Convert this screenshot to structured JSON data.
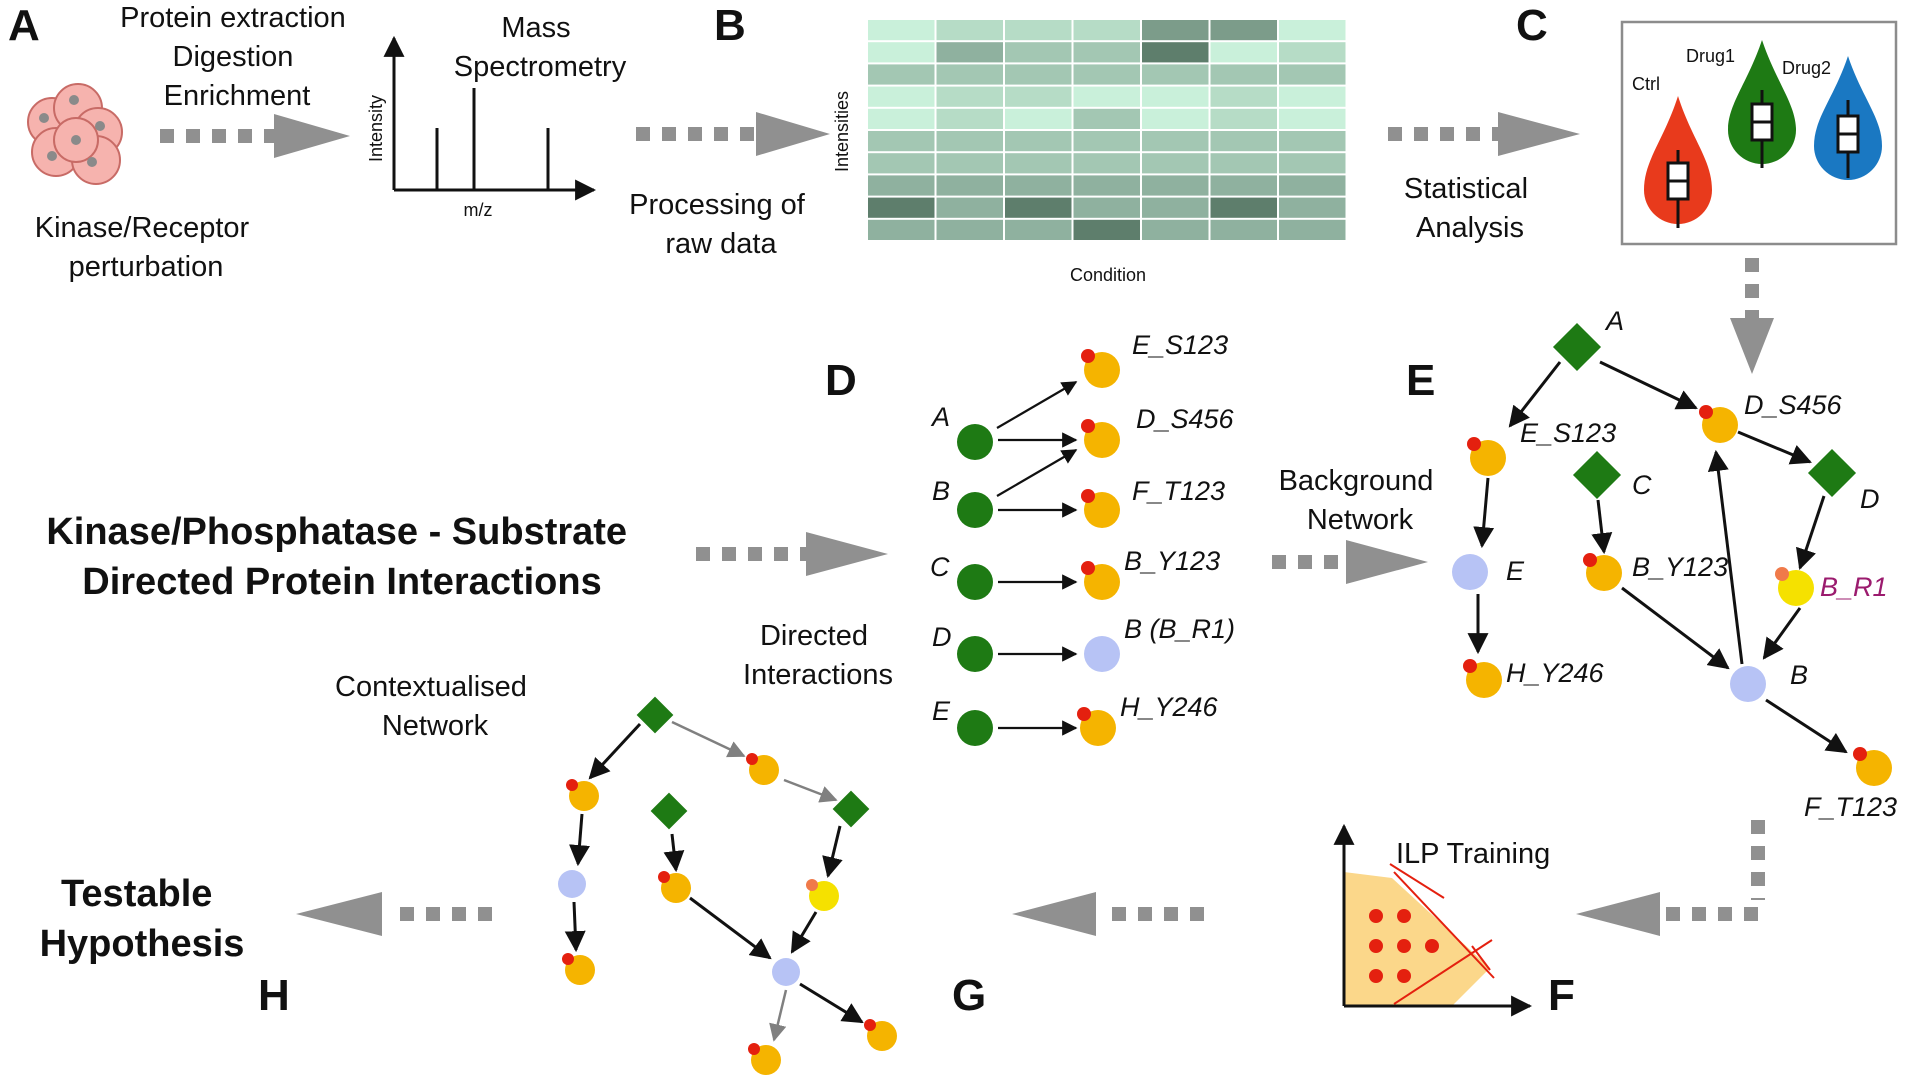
{
  "panels": {
    "A": "A",
    "B": "B",
    "C": "C",
    "D": "D",
    "E": "E",
    "F": "F",
    "G": "G",
    "H": "H"
  },
  "a": {
    "protein_lines": [
      "Protein extraction",
      "Digestion",
      "Enrichment"
    ],
    "kinase_lines": [
      "Kinase/Receptor",
      "perturbation"
    ],
    "ms_lines": [
      "Mass",
      "Spectrometry"
    ],
    "y_axis": "Intensity",
    "x_axis": "m/z"
  },
  "b": {
    "processing_lines": [
      "Processing of",
      "raw data"
    ],
    "y_axis": "Intensities",
    "x_axis": "Condition"
  },
  "c": {
    "stat_lines": [
      "Statistical",
      "Analysis"
    ],
    "groups": [
      {
        "name": "Ctrl",
        "color": "#e83a1c"
      },
      {
        "name": "Drug1",
        "color": "#1e7a14"
      },
      {
        "name": "Drug2",
        "color": "#1a78c2"
      }
    ]
  },
  "d": {
    "kinase_title_lines": [
      "Kinase/Phosphatase - Substrate",
      "Directed Protein Interactions"
    ],
    "directed_lines": [
      "Directed",
      "Interactions"
    ],
    "sources": [
      "A",
      "B",
      "C",
      "D",
      "E"
    ],
    "targets": [
      "E_S123",
      "D_S456",
      "F_T123",
      "B_Y123",
      "B (B_R1)",
      "H_Y246"
    ]
  },
  "e": {
    "background_lines": [
      "Background",
      "Network"
    ],
    "labels": [
      "A",
      "E_S123",
      "D_S456",
      "C",
      "D",
      "E",
      "B_Y123",
      "B_R1",
      "H_Y246",
      "B",
      "F_T123"
    ]
  },
  "f": {
    "ilp_title": "ILP Training"
  },
  "g": {
    "contextualised_lines": [
      "Contextualised",
      "Network"
    ]
  },
  "h": {
    "testable_lines": [
      "Testable",
      "Hypothesis"
    ]
  },
  "colors": {
    "kinase_green": "#1e7a14",
    "phospho_orange": "#f5b400",
    "phospho_dot": "#e4200f",
    "protein_blue": "#b7c3f5",
    "arrow_gray": "#909090",
    "heat_light": "#c9f0da",
    "heat_dark": "#5e7e6c"
  }
}
